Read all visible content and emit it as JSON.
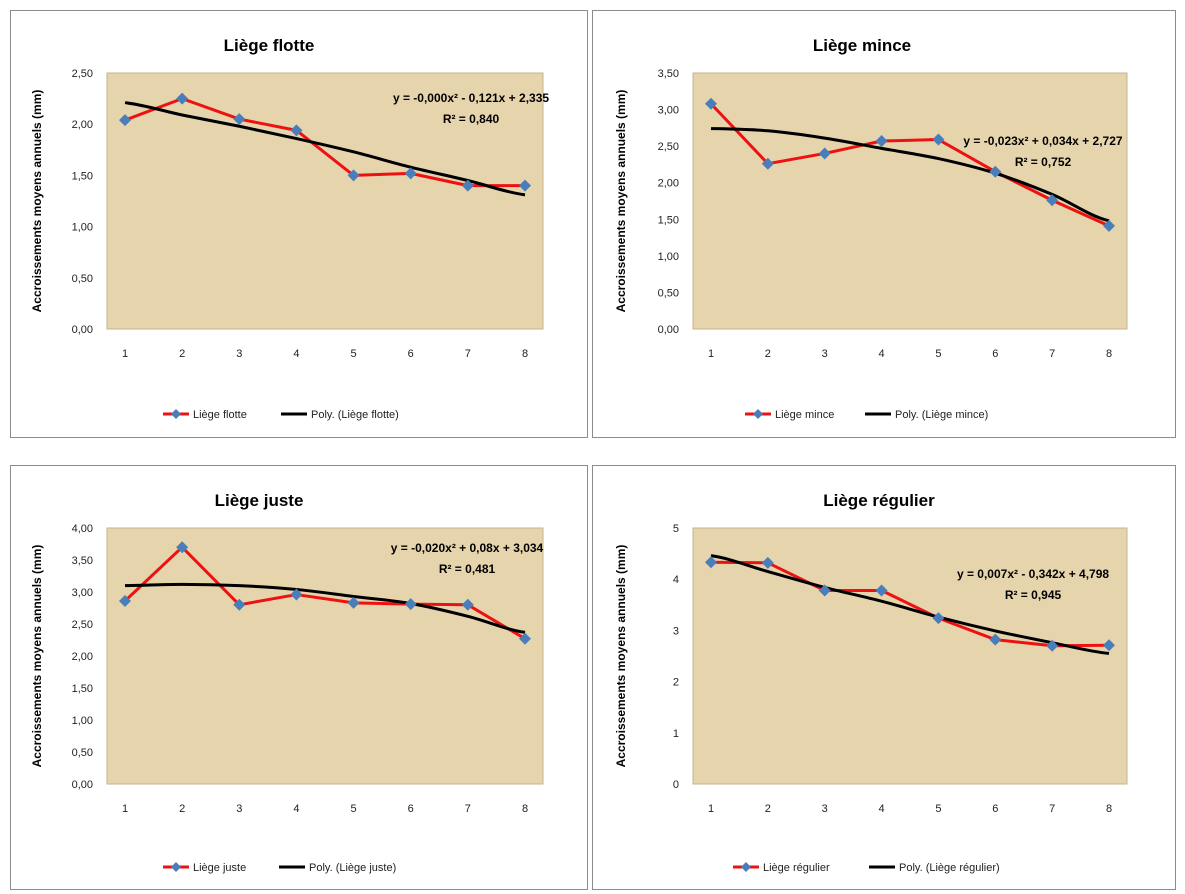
{
  "colors": {
    "data_line": "#ee1111",
    "marker": "#4a7ebb",
    "trend_line": "#000000",
    "plot_bg": "#e6d4ac",
    "frame_border": "#8c8c8c"
  },
  "chart_data": [
    {
      "type": "line",
      "title": "Liège flotte",
      "ylabel": "Accroissements moyens annuels (mm)",
      "xlabel": "",
      "categories": [
        "1",
        "2",
        "3",
        "4",
        "5",
        "6",
        "7",
        "8"
      ],
      "ylim": [
        0,
        2.5
      ],
      "yticks": [
        "0,00",
        "0,50",
        "1,00",
        "1,50",
        "2,00",
        "2,50"
      ],
      "series": [
        {
          "name": "Liège flotte",
          "values": [
            2.04,
            2.25,
            2.05,
            1.94,
            1.5,
            1.52,
            1.4,
            1.4
          ]
        },
        {
          "name": "Poly. (Liège flotte)",
          "values": [
            2.21,
            2.09,
            1.98,
            1.86,
            1.73,
            1.58,
            1.45,
            1.31
          ]
        }
      ],
      "equation": "y = -0,000x² - 0,121x + 2,335",
      "r2": "R² = 0,840",
      "legend": "bottom",
      "grid": false
    },
    {
      "type": "line",
      "title": "Liège mince",
      "ylabel": "Accroissements moyens annuels (mm)",
      "xlabel": "",
      "categories": [
        "1",
        "2",
        "3",
        "4",
        "5",
        "6",
        "7",
        "8"
      ],
      "ylim": [
        0,
        3.5
      ],
      "yticks": [
        "0,00",
        "0,50",
        "1,00",
        "1,50",
        "2,00",
        "2,50",
        "3,00",
        "3,50"
      ],
      "series": [
        {
          "name": "Liège mince",
          "values": [
            3.08,
            2.26,
            2.4,
            2.57,
            2.59,
            2.15,
            1.76,
            1.41
          ]
        },
        {
          "name": "Poly. (Liège mince)",
          "values": [
            2.74,
            2.71,
            2.61,
            2.47,
            2.33,
            2.13,
            1.84,
            1.48
          ]
        }
      ],
      "equation": "y = -0,023x² + 0,034x + 2,727",
      "r2": "R² = 0,752",
      "legend": "bottom",
      "grid": false
    },
    {
      "type": "line",
      "title": "Liège juste",
      "ylabel": "Accroissements moyens annuels (mm)",
      "xlabel": "",
      "categories": [
        "1",
        "2",
        "3",
        "4",
        "5",
        "6",
        "7",
        "8"
      ],
      "ylim": [
        0,
        4
      ],
      "yticks": [
        "0,00",
        "0,50",
        "1,00",
        "1,50",
        "2,00",
        "2,50",
        "3,00",
        "3,50",
        "4,00"
      ],
      "series": [
        {
          "name": "Liège juste",
          "values": [
            2.86,
            3.7,
            2.8,
            2.96,
            2.83,
            2.81,
            2.8,
            2.27
          ]
        },
        {
          "name": "Poly. (Liège juste)",
          "values": [
            3.1,
            3.12,
            3.1,
            3.04,
            2.93,
            2.82,
            2.62,
            2.37
          ]
        }
      ],
      "equation": "y = -0,020x² + 0,08x + 3,034",
      "r2": "R² = 0,481",
      "legend": "bottom",
      "grid": false
    },
    {
      "type": "line",
      "title": "Liège régulier",
      "ylabel": "Accroissements moyens annuels (mm)",
      "xlabel": "",
      "categories": [
        "1",
        "2",
        "3",
        "4",
        "5",
        "6",
        "7",
        "8"
      ],
      "ylim": [
        0,
        5
      ],
      "yticks": [
        "0",
        "1",
        "2",
        "3",
        "4",
        "5"
      ],
      "series": [
        {
          "name": "Liège régulier",
          "values": [
            4.33,
            4.32,
            3.78,
            3.78,
            3.24,
            2.82,
            2.7,
            2.71
          ]
        },
        {
          "name": "Poly. (Liège régulier)",
          "values": [
            4.46,
            4.15,
            3.84,
            3.57,
            3.26,
            2.99,
            2.76,
            2.55
          ]
        }
      ],
      "equation": "y = 0,007x² - 0,342x + 4,798",
      "r2": "R² = 0,945",
      "legend": "bottom",
      "grid": false
    }
  ]
}
